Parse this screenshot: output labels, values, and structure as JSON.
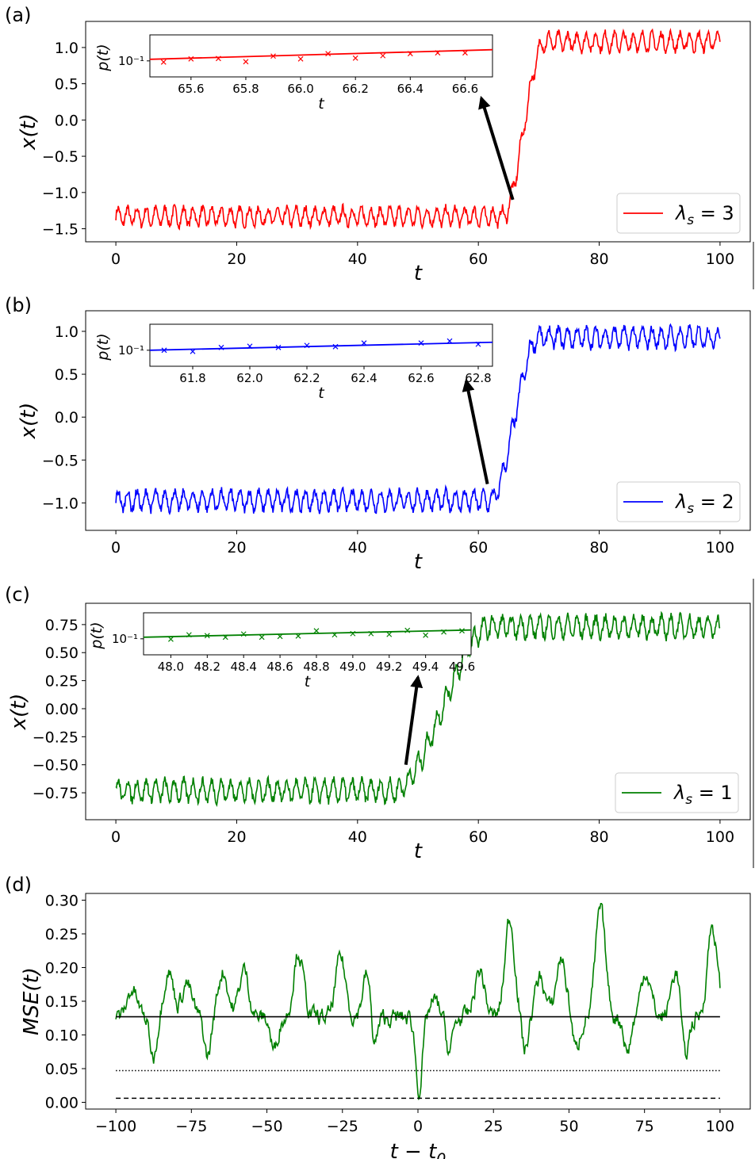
{
  "chart_data": [
    {
      "type": "line",
      "panel_label": "(a)",
      "xlabel": "t",
      "ylabel": "x(t)",
      "xlim": [
        -5,
        105
      ],
      "ylim": [
        -1.68,
        1.36
      ],
      "xticks": [
        0,
        20,
        40,
        60,
        80,
        100
      ],
      "xtick_labels": [
        "0",
        "20",
        "40",
        "60",
        "80",
        "100"
      ],
      "yticks": [
        -1.5,
        -1.0,
        -0.5,
        0.0,
        0.5,
        1.0
      ],
      "ytick_labels": [
        "−1.5",
        "−1.0",
        "−0.5",
        "0.0",
        "0.5",
        "1.0"
      ],
      "legend": "λₛ = 3",
      "legend_prefix": "λ",
      "legend_sub": "s",
      "legend_suffix": " = 3",
      "color": "#ff0000",
      "series": [
        {
          "name": "λ_s = 3",
          "t_range": [
            0,
            100
          ],
          "low_level": -1.33,
          "high_level": 1.08,
          "transition_start": 64,
          "transition_end": 71,
          "osc_amplitude": 0.12
        }
      ],
      "arrow": {
        "from": [
          65.7,
          -1.1
        ],
        "to": [
          60.5,
          0.3
        ]
      },
      "inset": {
        "ylabel": "p(t)",
        "xlabel": "t",
        "ytick_label": "10⁻¹",
        "xlim": [
          65.45,
          66.7
        ],
        "xticks": [
          65.6,
          65.8,
          66.0,
          66.2,
          66.4,
          66.6
        ],
        "xtick_labels": [
          "65.6",
          "65.8",
          "66.0",
          "66.2",
          "66.4",
          "66.6"
        ],
        "ylim": [
          0.06,
          0.165
        ],
        "fit_line": [
          0.104,
          0.128
        ],
        "marker": "x",
        "points": [
          [
            65.5,
            0.097
          ],
          [
            65.6,
            0.105
          ],
          [
            65.7,
            0.106
          ],
          [
            65.8,
            0.098
          ],
          [
            65.9,
            0.112
          ],
          [
            66.0,
            0.105
          ],
          [
            66.1,
            0.118
          ],
          [
            66.2,
            0.107
          ],
          [
            66.3,
            0.113
          ],
          [
            66.4,
            0.118
          ],
          [
            66.5,
            0.12
          ],
          [
            66.6,
            0.12
          ]
        ]
      }
    },
    {
      "type": "line",
      "panel_label": "(b)",
      "xlabel": "t",
      "ylabel": "x(t)",
      "xlim": [
        -5,
        105
      ],
      "ylim": [
        -1.32,
        1.24
      ],
      "xticks": [
        0,
        20,
        40,
        60,
        80,
        100
      ],
      "xtick_labels": [
        "0",
        "20",
        "40",
        "60",
        "80",
        "100"
      ],
      "yticks": [
        -1.0,
        -0.5,
        0.0,
        0.5,
        1.0
      ],
      "ytick_labels": [
        "−1.0",
        "−0.5",
        "0.0",
        "0.5",
        "1.0"
      ],
      "legend": "λₛ = 2",
      "legend_prefix": "λ",
      "legend_sub": "s",
      "legend_suffix": " = 2",
      "color": "#0000ff",
      "series": [
        {
          "name": "λ_s = 2",
          "t_range": [
            0,
            100
          ],
          "low_level": -0.97,
          "high_level": 0.93,
          "transition_start": 62,
          "transition_end": 70,
          "osc_amplitude": 0.11
        }
      ],
      "arrow": {
        "from": [
          61.5,
          -0.78
        ],
        "to": [
          58,
          0.42
        ]
      },
      "inset": {
        "ylabel": "p(t)",
        "xlabel": "t",
        "ytick_label": "10⁻¹",
        "xlim": [
          61.65,
          62.85
        ],
        "xticks": [
          61.8,
          62.0,
          62.2,
          62.4,
          62.6,
          62.8
        ],
        "xtick_labels": [
          "61.8",
          "62.0",
          "62.2",
          "62.4",
          "62.6",
          "62.8"
        ],
        "ylim": [
          0.06,
          0.165
        ],
        "fit_line": [
          0.1,
          0.12
        ],
        "marker": "x",
        "points": [
          [
            61.7,
            0.1
          ],
          [
            61.8,
            0.097
          ],
          [
            61.9,
            0.107
          ],
          [
            62.0,
            0.11
          ],
          [
            62.1,
            0.107
          ],
          [
            62.2,
            0.112
          ],
          [
            62.3,
            0.109
          ],
          [
            62.4,
            0.118
          ],
          [
            62.6,
            0.118
          ],
          [
            62.7,
            0.123
          ],
          [
            62.8,
            0.115
          ]
        ]
      }
    },
    {
      "type": "line",
      "panel_label": "(c)",
      "xlabel": "t",
      "ylabel": "x(t)",
      "xlim": [
        -5,
        105
      ],
      "ylim": [
        -0.99,
        0.94
      ],
      "xticks": [
        0,
        20,
        40,
        60,
        80,
        100
      ],
      "xtick_labels": [
        "0",
        "20",
        "40",
        "60",
        "80",
        "100"
      ],
      "yticks": [
        -0.75,
        -0.5,
        -0.25,
        0.0,
        0.25,
        0.5,
        0.75
      ],
      "ytick_labels": [
        "−0.75",
        "−0.50",
        "−0.25",
        "0.00",
        "0.25",
        "0.50",
        "0.75"
      ],
      "legend": "λₛ = 1",
      "legend_prefix": "λ",
      "legend_sub": "s",
      "legend_suffix": " = 1",
      "color": "#008000",
      "series": [
        {
          "name": "λ_s = 1",
          "t_range": [
            0,
            100
          ],
          "low_level": -0.73,
          "high_level": 0.73,
          "transition_start": 46,
          "transition_end": 62,
          "osc_amplitude": 0.09
        }
      ],
      "arrow": {
        "from": [
          48,
          -0.5
        ],
        "to": [
          50,
          0.28
        ]
      },
      "inset": {
        "ylabel": "p(t)",
        "xlabel": "t",
        "ytick_label": "10⁻¹",
        "xlim": [
          47.85,
          49.65
        ],
        "xticks": [
          48.0,
          48.2,
          48.4,
          48.6,
          48.8,
          49.0,
          49.2,
          49.4,
          49.6
        ],
        "xtick_labels": [
          "48.0",
          "48.2",
          "48.4",
          "48.6",
          "48.8",
          "49.0",
          "49.2",
          "49.4",
          "49.6"
        ],
        "ylim": [
          0.06,
          0.165
        ],
        "fit_line": [
          0.104,
          0.122
        ],
        "marker": "x",
        "points": [
          [
            48.0,
            0.099
          ],
          [
            48.1,
            0.11
          ],
          [
            48.2,
            0.108
          ],
          [
            48.3,
            0.104
          ],
          [
            48.4,
            0.112
          ],
          [
            48.5,
            0.104
          ],
          [
            48.6,
            0.106
          ],
          [
            48.7,
            0.107
          ],
          [
            48.8,
            0.12
          ],
          [
            48.9,
            0.11
          ],
          [
            49.0,
            0.113
          ],
          [
            49.1,
            0.113
          ],
          [
            49.2,
            0.111
          ],
          [
            49.3,
            0.121
          ],
          [
            49.4,
            0.109
          ],
          [
            49.5,
            0.117
          ],
          [
            49.6,
            0.12
          ]
        ]
      }
    },
    {
      "type": "line",
      "panel_label": "(d)",
      "xlabel": "t − t₀",
      "xlabel_main": "t − t",
      "xlabel_sub": "0",
      "ylabel": "MSE(t)",
      "xlim": [
        -110,
        110
      ],
      "ylim": [
        -0.01,
        0.31
      ],
      "xticks": [
        -100,
        -75,
        -50,
        -25,
        0,
        25,
        50,
        75,
        100
      ],
      "xtick_labels": [
        "−100",
        "−75",
        "−50",
        "−25",
        "0",
        "25",
        "50",
        "75",
        "100"
      ],
      "yticks": [
        0.0,
        0.05,
        0.1,
        0.15,
        0.2,
        0.25,
        0.3
      ],
      "ytick_labels": [
        "0.00",
        "0.05",
        "0.10",
        "0.15",
        "0.20",
        "0.25",
        "0.30"
      ],
      "series": [
        {
          "name": "MSE(t)",
          "color": "#008000",
          "style": "solid",
          "t_range": [
            -100,
            100
          ],
          "mean": 0.125,
          "min": 0.005,
          "max": 0.295,
          "min_at": 0,
          "peak_at": 60
        },
        {
          "name": "mean",
          "color": "#000000",
          "style": "solid",
          "value": 0.127
        },
        {
          "name": "dotted reference",
          "color": "#000000",
          "style": "dotted",
          "value": 0.047
        },
        {
          "name": "dashed reference",
          "color": "#000000",
          "style": "dashed",
          "value": 0.006
        }
      ]
    }
  ]
}
